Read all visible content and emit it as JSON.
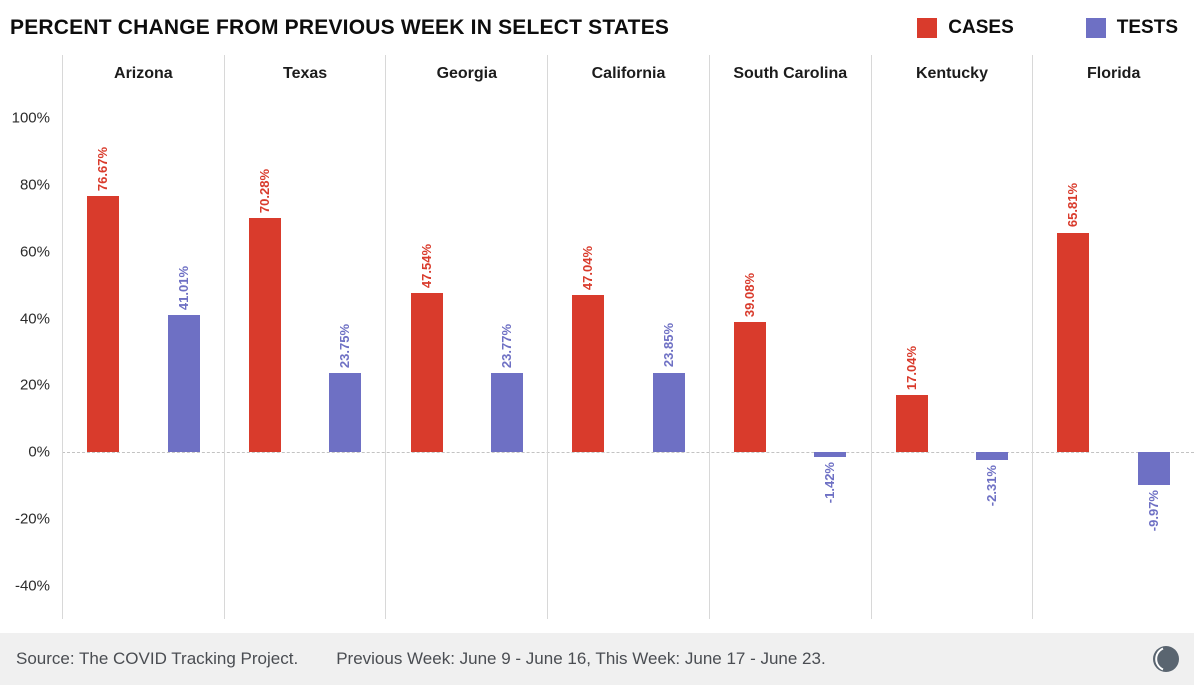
{
  "header": {
    "title": "PERCENT CHANGE FROM PREVIOUS WEEK IN SELECT STATES",
    "legend": [
      {
        "label": "CASES",
        "color": "#d93b2c"
      },
      {
        "label": "TESTS",
        "color": "#6e70c4"
      }
    ]
  },
  "chart_data": {
    "type": "bar",
    "title": "PERCENT CHANGE FROM PREVIOUS WEEK IN SELECT STATES",
    "categories": [
      "Arizona",
      "Texas",
      "Georgia",
      "California",
      "South Carolina",
      "Kentucky",
      "Florida"
    ],
    "series": [
      {
        "name": "CASES",
        "color": "#d93b2c",
        "values": [
          76.67,
          70.28,
          47.54,
          47.04,
          39.08,
          17.04,
          65.81
        ],
        "labels": [
          "76.67%",
          "70.28%",
          "47.54%",
          "47.04%",
          "39.08%",
          "17.04%",
          "65.81%"
        ]
      },
      {
        "name": "TESTS",
        "color": "#6e70c4",
        "values": [
          41.01,
          23.75,
          23.77,
          23.85,
          -1.42,
          -2.31,
          -9.97
        ],
        "labels": [
          "41.01%",
          "23.75%",
          "23.77%",
          "23.85%",
          "-1.42%",
          "-2.31%",
          "-9.97%"
        ]
      }
    ],
    "ylabel": "",
    "xlabel": "",
    "yticks": [
      100,
      80,
      60,
      40,
      20,
      0,
      -20,
      -40
    ],
    "ylim": [
      -50,
      119
    ],
    "zero_line": "dashed",
    "grid": "off",
    "legend_position": "top-right",
    "value_label_orientation": "vertical"
  },
  "footer": {
    "source": "Source: The COVID Tracking Project.",
    "period": "Previous Week: June 9 - June 16, This Week: June 17 - June 23.",
    "logo_icon": "covid-tracking-project-logo"
  }
}
